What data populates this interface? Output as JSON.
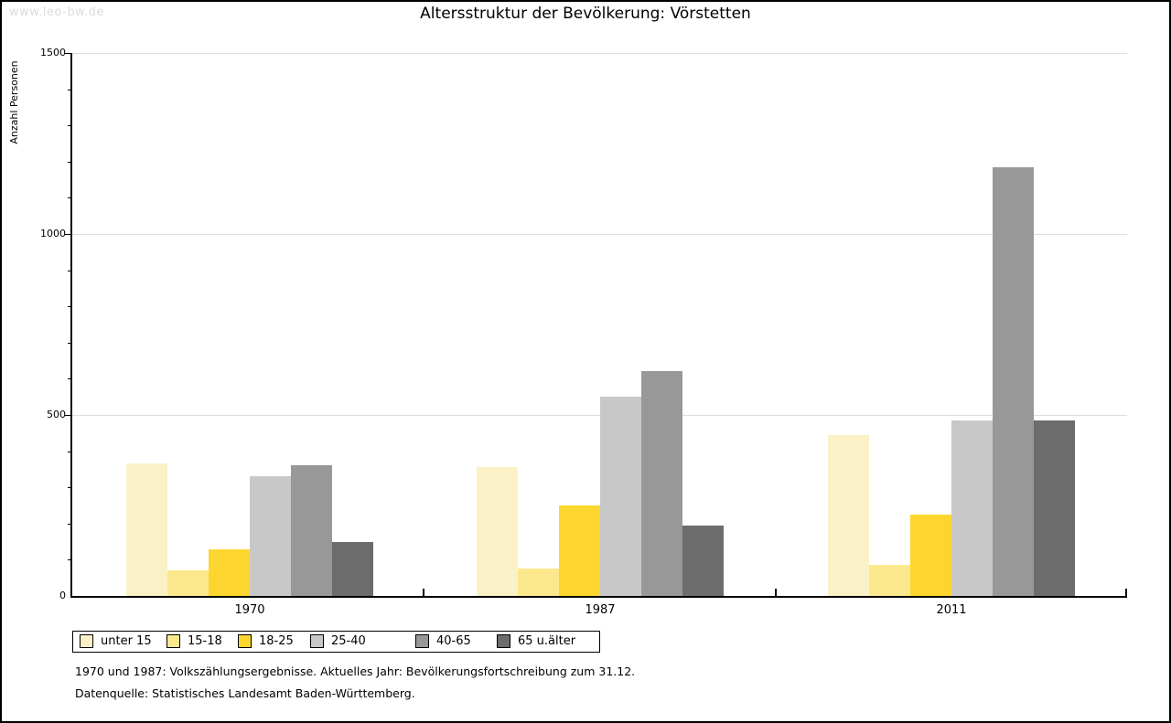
{
  "page": {
    "watermark": "www.leo-bw.de",
    "title": "Altersstruktur der Bevölkerung: Vörstetten",
    "footnote_line1": "1970 und 1987: Volkszählungsergebnisse. Aktuelles Jahr: Bevölkerungsfortschreibung zum 31.12.",
    "footnote_line2": "Datenquelle: Statistisches Landesamt Baden-Württemberg."
  },
  "colors": {
    "background": "#FFFFFF",
    "axis": "#000000",
    "gridline": "#DEDEDE",
    "watermark_text": "#DCDCDC"
  },
  "chart_data": {
    "type": "bar",
    "title": "Altersstruktur der Bevölkerung: Vörstetten",
    "xlabel": "",
    "ylabel": "Anzahl Personen",
    "ylim": [
      0,
      1500
    ],
    "yticks": [
      0,
      500,
      1000,
      1500
    ],
    "minor_tick_step": 100,
    "grid": "horizontal",
    "legend_position": "bottom-left",
    "categories": [
      "1970",
      "1987",
      "2011"
    ],
    "series": [
      {
        "name": "unter 15",
        "color": "#FAF2C6",
        "values": [
          365,
          355,
          445
        ]
      },
      {
        "name": "15-18",
        "color": "#FBE88D",
        "values": [
          70,
          75,
          85
        ]
      },
      {
        "name": "18-25",
        "color": "#FCD62F",
        "values": [
          130,
          250,
          225
        ]
      },
      {
        "name": "25-40",
        "color": "#C8C8C8",
        "values": [
          330,
          550,
          485
        ]
      },
      {
        "name": "40-65",
        "color": "#989898",
        "values": [
          360,
          620,
          1185
        ]
      },
      {
        "name": "65 u.älter",
        "color": "#6C6C6C",
        "values": [
          150,
          195,
          485
        ]
      }
    ]
  }
}
